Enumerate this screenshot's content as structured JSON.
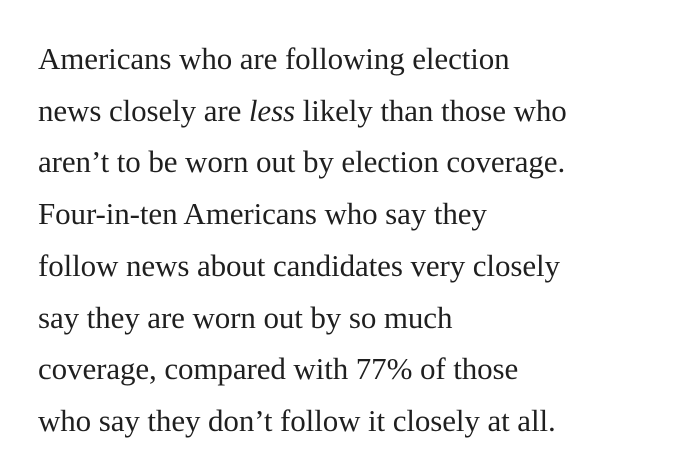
{
  "paragraph": {
    "line1": "Americans who are following election",
    "line2_pre": "news closely are ",
    "line2_em": "less",
    "line2_post": " likely than those who",
    "line3": "aren’t to be worn out by election coverage.",
    "line4": "Four-in-ten Americans who say they",
    "line5": "follow news about candidates very closely",
    "line6": "say they are worn out by so much",
    "line7": "coverage, compared with 77% of those",
    "line8": "who say they don’t follow it closely at all."
  },
  "colors": {
    "text": "#1f1f1f",
    "background": "#ffffff"
  }
}
